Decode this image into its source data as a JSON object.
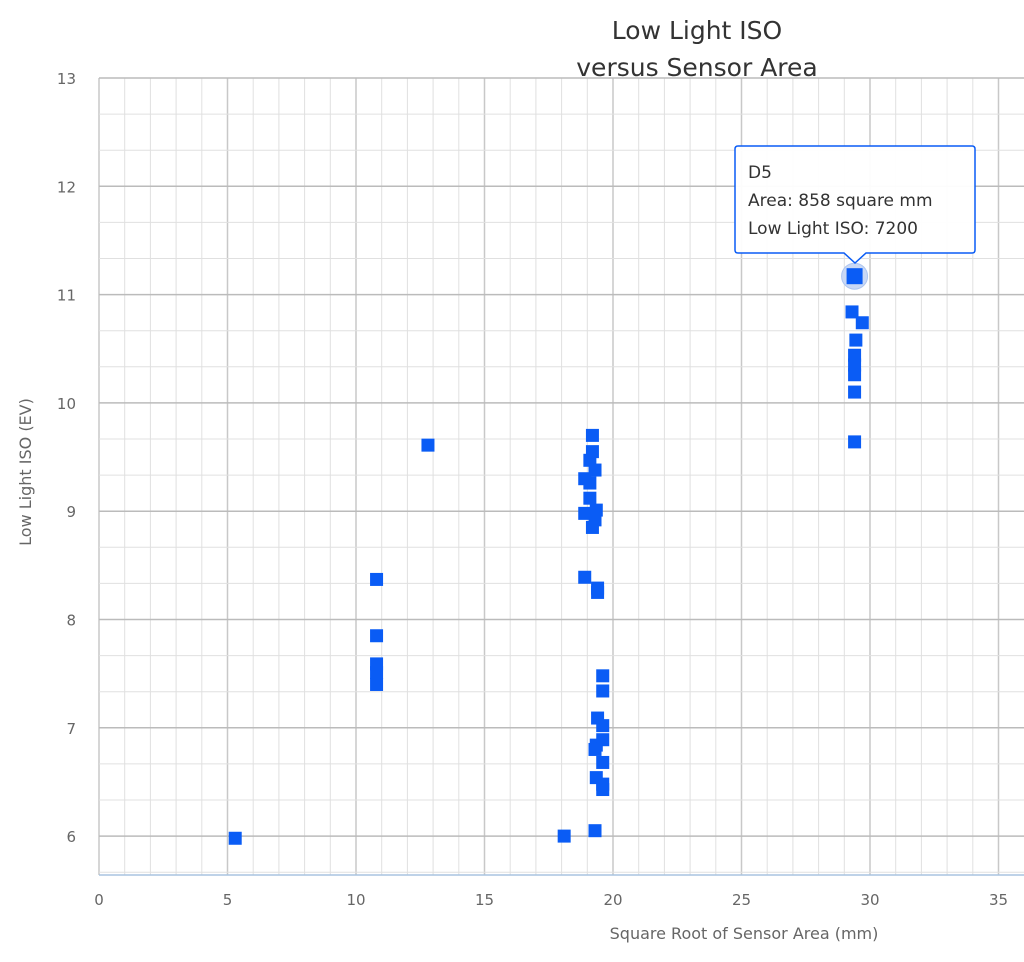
{
  "chart_data": {
    "type": "scatter",
    "title": [
      "Low Light ISO",
      "versus Sensor Area"
    ],
    "xlabel": "Square Root of Sensor Area (mm)",
    "ylabel": "Low Light ISO (EV)",
    "xlim": [
      0,
      35.9
    ],
    "ylim": [
      5.66,
      13
    ],
    "xticks": [
      0,
      5,
      10,
      15,
      20,
      25,
      30,
      35
    ],
    "yticks": [
      6,
      7,
      8,
      9,
      10,
      11,
      12,
      13
    ],
    "grid": true,
    "marker": "square",
    "color": "#0a5cf5",
    "points": [
      [
        5.3,
        5.98
      ],
      [
        10.8,
        8.37
      ],
      [
        10.8,
        7.85
      ],
      [
        10.8,
        7.59
      ],
      [
        10.8,
        7.51
      ],
      [
        10.8,
        7.4
      ],
      [
        12.8,
        9.61
      ],
      [
        19.2,
        9.7
      ],
      [
        19.2,
        9.55
      ],
      [
        19.1,
        9.47
      ],
      [
        19.3,
        9.38
      ],
      [
        18.9,
        9.3
      ],
      [
        19.1,
        9.26
      ],
      [
        19.1,
        9.12
      ],
      [
        18.9,
        8.98
      ],
      [
        19.35,
        9.01
      ],
      [
        19.3,
        8.92
      ],
      [
        19.2,
        8.85
      ],
      [
        18.9,
        8.39
      ],
      [
        19.4,
        8.29
      ],
      [
        19.4,
        8.25
      ],
      [
        19.6,
        7.48
      ],
      [
        19.6,
        7.34
      ],
      [
        19.4,
        7.09
      ],
      [
        19.6,
        7.02
      ],
      [
        19.35,
        6.84
      ],
      [
        19.6,
        6.89
      ],
      [
        19.3,
        6.8
      ],
      [
        19.6,
        6.68
      ],
      [
        19.35,
        6.54
      ],
      [
        19.6,
        6.48
      ],
      [
        19.6,
        6.43
      ],
      [
        18.1,
        6.0
      ],
      [
        19.3,
        6.05
      ],
      [
        29.3,
        10.84
      ],
      [
        29.7,
        10.74
      ],
      [
        29.45,
        10.58
      ],
      [
        29.4,
        10.44
      ],
      [
        29.4,
        10.35
      ],
      [
        29.4,
        10.26
      ],
      [
        29.4,
        10.1
      ],
      [
        29.4,
        9.64
      ]
    ],
    "highlighted": {
      "x": 29.4,
      "y": 11.17
    },
    "tooltip": {
      "name": "D5",
      "area": "Area: 858 square mm",
      "iso": "Low Light ISO: 7200"
    }
  }
}
